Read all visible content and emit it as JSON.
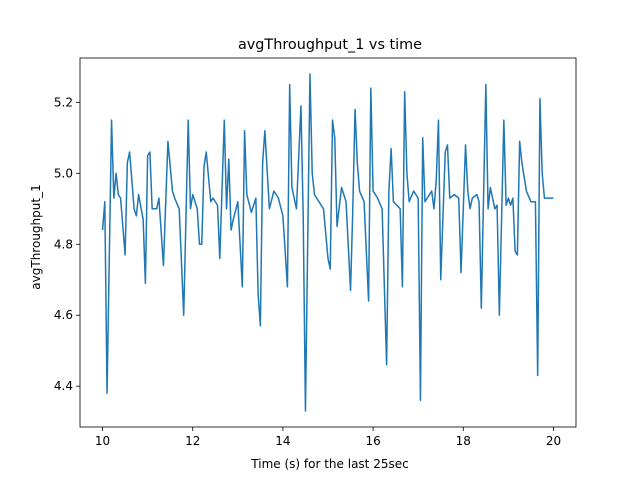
{
  "chart_data": {
    "type": "line",
    "title": "avgThroughput_1 vs time",
    "x_label": "Time (s) for the last 25sec",
    "y_label": "avgThroughput_1",
    "x": [
      10.0,
      10.05,
      10.1,
      10.2,
      10.25,
      10.3,
      10.35,
      10.4,
      10.45,
      10.5,
      10.55,
      10.6,
      10.7,
      10.75,
      10.8,
      10.9,
      10.95,
      11.0,
      11.05,
      11.1,
      11.2,
      11.25,
      11.35,
      11.45,
      11.55,
      11.6,
      11.7,
      11.8,
      11.9,
      11.95,
      12.0,
      12.1,
      12.15,
      12.2,
      12.25,
      12.3,
      12.4,
      12.45,
      12.55,
      12.6,
      12.7,
      12.75,
      12.8,
      12.85,
      12.9,
      13.0,
      13.1,
      13.15,
      13.2,
      13.3,
      13.4,
      13.45,
      13.5,
      13.55,
      13.6,
      13.7,
      13.8,
      13.9,
      14.0,
      14.1,
      14.15,
      14.2,
      14.3,
      14.4,
      14.45,
      14.5,
      14.6,
      14.65,
      14.7,
      14.9,
      15.0,
      15.05,
      15.1,
      15.15,
      15.2,
      15.3,
      15.4,
      15.5,
      15.55,
      15.6,
      15.65,
      15.7,
      15.8,
      15.9,
      15.95,
      16.0,
      16.1,
      16.2,
      16.3,
      16.35,
      16.4,
      16.45,
      16.6,
      16.65,
      16.7,
      16.75,
      16.8,
      16.9,
      17.0,
      17.05,
      17.1,
      17.15,
      17.2,
      17.3,
      17.35,
      17.4,
      17.45,
      17.5,
      17.6,
      17.65,
      17.7,
      17.8,
      17.9,
      17.95,
      18.05,
      18.1,
      18.15,
      18.2,
      18.3,
      18.35,
      18.4,
      18.5,
      18.55,
      18.6,
      18.7,
      18.75,
      18.8,
      18.9,
      18.95,
      19.0,
      19.05,
      19.1,
      19.15,
      19.2,
      19.25,
      19.3,
      19.4,
      19.5,
      19.6,
      19.65,
      19.7,
      19.75,
      19.8,
      20.0
    ],
    "series": [
      {
        "name": "avgThroughput_1",
        "color": "#1f77b4",
        "values": [
          4.84,
          4.92,
          4.38,
          5.15,
          4.93,
          5.0,
          4.94,
          4.93,
          4.85,
          4.77,
          5.03,
          5.06,
          4.9,
          4.88,
          4.94,
          4.87,
          4.69,
          5.05,
          5.06,
          4.9,
          4.9,
          4.93,
          4.74,
          5.09,
          4.95,
          4.93,
          4.9,
          4.6,
          5.15,
          4.9,
          4.94,
          4.9,
          4.8,
          4.8,
          5.02,
          5.06,
          4.92,
          4.93,
          4.91,
          4.76,
          5.15,
          4.9,
          5.04,
          4.84,
          4.87,
          4.92,
          4.68,
          5.12,
          4.94,
          4.89,
          4.93,
          4.66,
          4.57,
          5.03,
          5.12,
          4.9,
          4.95,
          4.93,
          4.88,
          4.68,
          5.25,
          4.96,
          4.9,
          5.19,
          4.88,
          4.33,
          5.28,
          5.0,
          4.94,
          4.9,
          4.76,
          4.73,
          5.15,
          5.1,
          4.85,
          4.96,
          4.92,
          4.67,
          4.9,
          5.18,
          5.03,
          4.95,
          4.92,
          4.64,
          5.24,
          4.95,
          4.93,
          4.9,
          4.46,
          4.95,
          5.07,
          4.92,
          4.9,
          4.68,
          5.23,
          5.0,
          4.92,
          4.95,
          4.93,
          4.36,
          5.1,
          4.92,
          4.93,
          4.95,
          4.9,
          4.98,
          5.15,
          4.7,
          5.06,
          5.08,
          4.93,
          4.94,
          4.93,
          4.72,
          5.08,
          4.95,
          4.9,
          4.93,
          4.94,
          4.92,
          4.62,
          5.25,
          4.9,
          4.96,
          4.9,
          4.91,
          4.6,
          5.15,
          4.91,
          4.93,
          4.91,
          4.93,
          4.78,
          4.77,
          5.09,
          5.03,
          4.95,
          4.92,
          4.92,
          4.43,
          5.21,
          5.0,
          4.93,
          4.93
        ]
      }
    ],
    "xlim": [
      9.5,
      20.5
    ],
    "ylim": [
      4.285,
      5.325
    ],
    "xticks": [
      10,
      12,
      14,
      16,
      18,
      20
    ],
    "yticks": [
      4.4,
      4.6,
      4.8,
      {
        "value": 5,
        "label": "5.0"
      },
      5.2
    ],
    "grid": false
  }
}
